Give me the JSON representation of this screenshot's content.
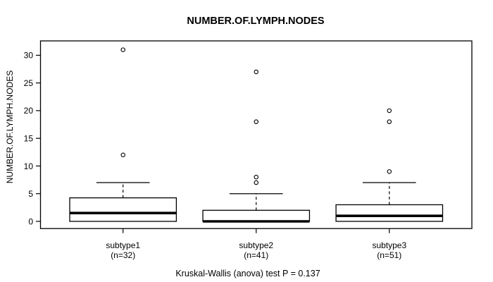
{
  "title": "NUMBER.OF.LYMPH.NODES",
  "caption": "Kruskal-Wallis (anova) test P = 0.137",
  "chart_data": {
    "type": "boxplot",
    "title": "NUMBER.OF.LYMPH.NODES",
    "xlabel": "",
    "ylabel": "NUMBER.OF.LYMPH.NODES",
    "categories": [
      "subtype1",
      "subtype2",
      "subtype3"
    ],
    "category_sublabels": [
      "(n=32)",
      "(n=41)",
      "(n=51)"
    ],
    "sample_sizes": [
      32,
      41,
      51
    ],
    "y_ticks": [
      0,
      5,
      10,
      15,
      20,
      25,
      30
    ],
    "ylim": [
      -1.3,
      32.6
    ],
    "grid": false,
    "legend": "none",
    "series": [
      {
        "name": "subtype1",
        "n": 32,
        "q1": 0,
        "median": 1.5,
        "q3": 4.25,
        "whisker_low": 0,
        "whisker_high": 7,
        "outliers": [
          12,
          31
        ]
      },
      {
        "name": "subtype2",
        "n": 41,
        "q1": 0,
        "median": 0,
        "q3": 2,
        "whisker_low": 0,
        "whisker_high": 5,
        "outliers": [
          7,
          8,
          18,
          27
        ]
      },
      {
        "name": "subtype3",
        "n": 51,
        "q1": 0,
        "median": 1,
        "q3": 3,
        "whisker_low": 0,
        "whisker_high": 7,
        "outliers": [
          9,
          18,
          20
        ]
      }
    ],
    "annotation": "Kruskal-Wallis (anova) test P = 0.137",
    "colors": {
      "line": "#000000",
      "box_fill": "#ffffff",
      "background": "#ffffff",
      "text": "#000000"
    }
  }
}
